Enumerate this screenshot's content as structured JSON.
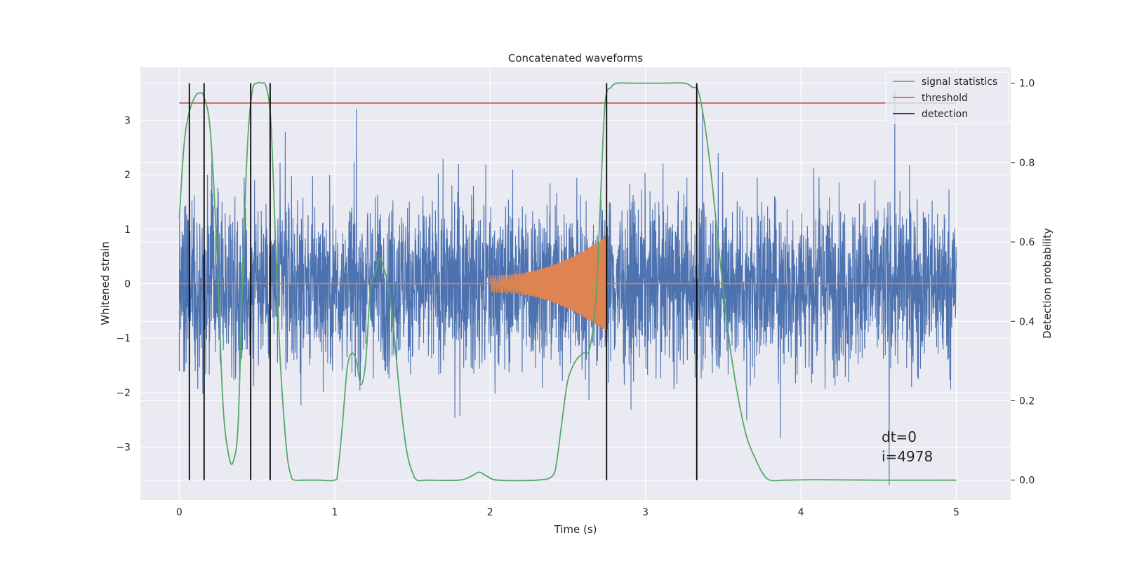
{
  "chart_data": {
    "type": "line",
    "title": "Concatenated waveforms",
    "xlabel": "Time (s)",
    "ylabel": "Whitened strain",
    "y2label": "Detection probability",
    "xlim": [
      -0.25,
      5.35
    ],
    "ylim": [
      -3.97,
      3.97
    ],
    "y2lim": [
      -0.05,
      1.04
    ],
    "xticks": [
      0,
      1,
      2,
      3,
      4,
      5
    ],
    "yticks": [
      -3,
      -2,
      -1,
      0,
      1,
      2,
      3
    ],
    "y2ticks": [
      0.0,
      0.2,
      0.4,
      0.6,
      0.8,
      1.0
    ],
    "xtick_labels": [
      "0",
      "1",
      "2",
      "3",
      "4",
      "5"
    ],
    "ytick_labels": [
      "−3",
      "−2",
      "−1",
      "0",
      "1",
      "2",
      "3"
    ],
    "y2tick_labels": [
      "0.0",
      "0.2",
      "0.4",
      "0.6",
      "0.8",
      "1.0"
    ],
    "grid": true,
    "legend_position": "top-right",
    "colors": {
      "background": "#eaeaf2",
      "grid": "#ffffff",
      "strain": "#4c72b0",
      "chirp": "#dd8452",
      "signal_statistics": "#55a868",
      "threshold": "#c44e52",
      "detection": "#000000"
    },
    "series": [
      {
        "name": "signal statistics",
        "axis": "right",
        "x": [
          0,
          0.03,
          0.06,
          0.1,
          0.13,
          0.16,
          0.2,
          0.24,
          0.28,
          0.32,
          0.35,
          0.38,
          0.41,
          0.44,
          0.47,
          0.5,
          0.53,
          0.56,
          0.59,
          0.62,
          0.65,
          0.69,
          0.72,
          0.75,
          0.8,
          0.9,
          1.0,
          1.02,
          1.05,
          1.08,
          1.11,
          1.14,
          1.17,
          1.2,
          1.23,
          1.26,
          1.29,
          1.32,
          1.35,
          1.38,
          1.41,
          1.44,
          1.47,
          1.5,
          1.53,
          1.6,
          1.8,
          1.88,
          1.93,
          1.98,
          2.05,
          2.3,
          2.4,
          2.43,
          2.46,
          2.5,
          2.55,
          2.6,
          2.64,
          2.68,
          2.71,
          2.74,
          2.78,
          2.82,
          2.9,
          3.1,
          3.25,
          3.3,
          3.34,
          3.38,
          3.42,
          3.46,
          3.5,
          3.55,
          3.6,
          3.65,
          3.7,
          3.75,
          3.8,
          3.9,
          4.1,
          4.5,
          5.0
        ],
        "values": [
          0.66,
          0.84,
          0.92,
          0.965,
          0.975,
          0.965,
          0.88,
          0.6,
          0.2,
          0.06,
          0.05,
          0.15,
          0.55,
          0.85,
          0.98,
          1.0,
          1.0,
          0.99,
          0.9,
          0.6,
          0.3,
          0.08,
          0.01,
          0.0,
          0.0,
          0.0,
          0.0,
          0.02,
          0.14,
          0.28,
          0.32,
          0.3,
          0.24,
          0.3,
          0.48,
          0.52,
          0.56,
          0.53,
          0.48,
          0.38,
          0.25,
          0.14,
          0.06,
          0.02,
          0.0,
          0.0,
          0.0,
          0.01,
          0.02,
          0.01,
          0.0,
          0.0,
          0.01,
          0.05,
          0.14,
          0.25,
          0.3,
          0.32,
          0.33,
          0.45,
          0.7,
          0.95,
          0.99,
          1.0,
          1.0,
          1.0,
          1.0,
          0.99,
          0.98,
          0.9,
          0.78,
          0.63,
          0.48,
          0.32,
          0.2,
          0.11,
          0.06,
          0.02,
          0.0,
          0.0,
          0.001,
          0.0,
          0.0
        ]
      },
      {
        "name": "threshold",
        "axis": "right",
        "x": [
          0,
          5
        ],
        "values": [
          0.95,
          0.95
        ]
      },
      {
        "name": "detection",
        "axis": "right",
        "x_positions": [
          0.065,
          0.16,
          0.46,
          0.585,
          2.75,
          3.33
        ],
        "range": [
          0.0,
          1.0
        ]
      }
    ],
    "strain": {
      "axis": "left",
      "x_range": [
        0,
        5
      ],
      "noise_range": [
        -3.7,
        3.55
      ],
      "chirp_start": 2.0,
      "chirp_end": 2.75,
      "chirp_amplitude_start": 0.15,
      "chirp_amplitude_end": 0.9
    },
    "annotations": [
      "dt=0",
      "i=4978"
    ]
  }
}
